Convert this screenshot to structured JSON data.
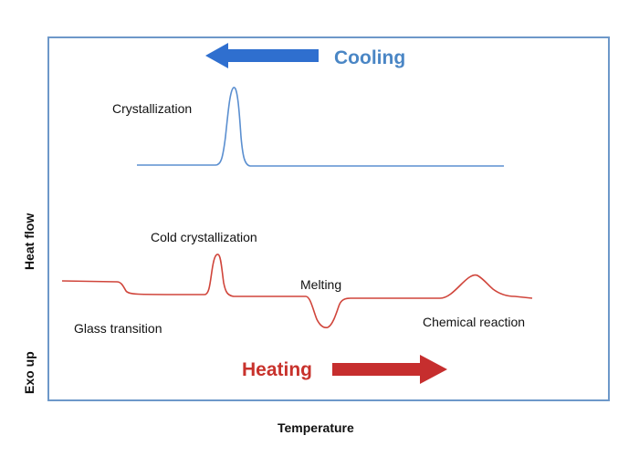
{
  "directions": {
    "cooling": {
      "label": "Cooling",
      "color": "#4a86c5"
    },
    "heating": {
      "label": "Heating",
      "color": "#c8322c"
    }
  },
  "axes": {
    "x_label": "Temperature",
    "y_label_top": "Heat flow",
    "y_label_bottom": "Exo up"
  },
  "events": {
    "crystallization": "Crystallization",
    "cold_crystallization": "Cold crystallization",
    "melting": "Melting",
    "glass_transition": "Glass transition",
    "chemical_reaction": "Chemical reaction"
  },
  "colors": {
    "frame": "#6d98c9",
    "cooling_curve": "#5b8fd0",
    "heating_curve": "#d0453b"
  }
}
